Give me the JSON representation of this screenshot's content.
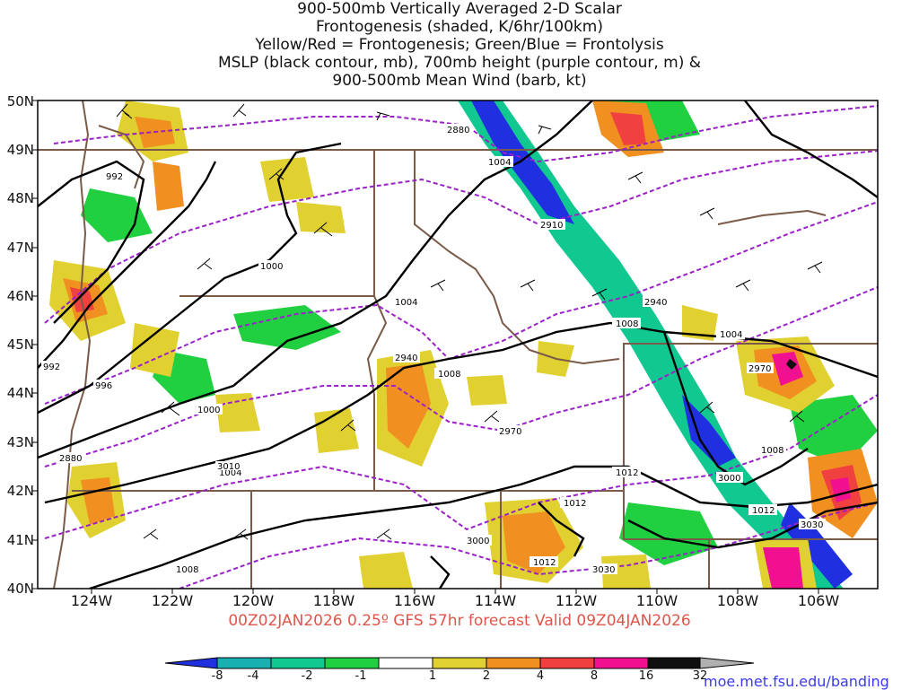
{
  "title_lines": [
    "900-500mb Vertically Averaged 2-D Scalar",
    "Frontogenesis (shaded, K/6hr/100km)",
    "Yellow/Red = Frontogenesis;  Green/Blue = Frontolysis",
    "MSLP (black contour, mb), 700mb height (purple contour, m) &",
    "900-500mb Mean Wind (barb, kt)"
  ],
  "footer": "00Z02JAN2026 0.25º GFS 57hr forecast Valid 09Z04JAN2026",
  "credit": "moe.met.fsu.edu/banding",
  "lat_labels": [
    "50N",
    "49N",
    "48N",
    "47N",
    "46N",
    "45N",
    "44N",
    "43N",
    "42N",
    "41N",
    "40N"
  ],
  "lon_labels": [
    "124W",
    "122W",
    "120W",
    "118W",
    "116W",
    "114W",
    "112W",
    "110W",
    "108W",
    "106W"
  ],
  "colorbar": {
    "labels": [
      "-8",
      "-4",
      "-2",
      "-1",
      "1",
      "2",
      "4",
      "8",
      "16",
      "32"
    ],
    "colors": [
      "#2030e0",
      "#18b0b0",
      "#10c890",
      "#20d040",
      "#ffffff",
      "#e0d030",
      "#f09020",
      "#f04040",
      "#f01090",
      "#101010"
    ],
    "low_color": "#2030e0",
    "high_color": "#b0b0b0"
  },
  "mslp_labels": [
    "992",
    "1000",
    "1004",
    "1008",
    "1012",
    "996",
    "992",
    "1000",
    "1004",
    "1008",
    "1004",
    "1008",
    "1012",
    "1004",
    "1008",
    "1012",
    "1012"
  ],
  "height_labels": [
    "2880",
    "2910",
    "2940",
    "2940",
    "2970",
    "2970",
    "3000",
    "3000",
    "3030",
    "3030",
    "2880",
    "3010"
  ],
  "colors": {
    "mslp": "#000000",
    "height": "#9a20c8",
    "borders": "#7a5a48",
    "frontogenesis_yellow": "#e0d030",
    "frontogenesis_orange": "#f09020",
    "frontogenesis_red": "#f04040",
    "frontolysis_green": "#20d040",
    "frontolysis_teal": "#10c890",
    "frontolysis_blue": "#2030e0"
  }
}
